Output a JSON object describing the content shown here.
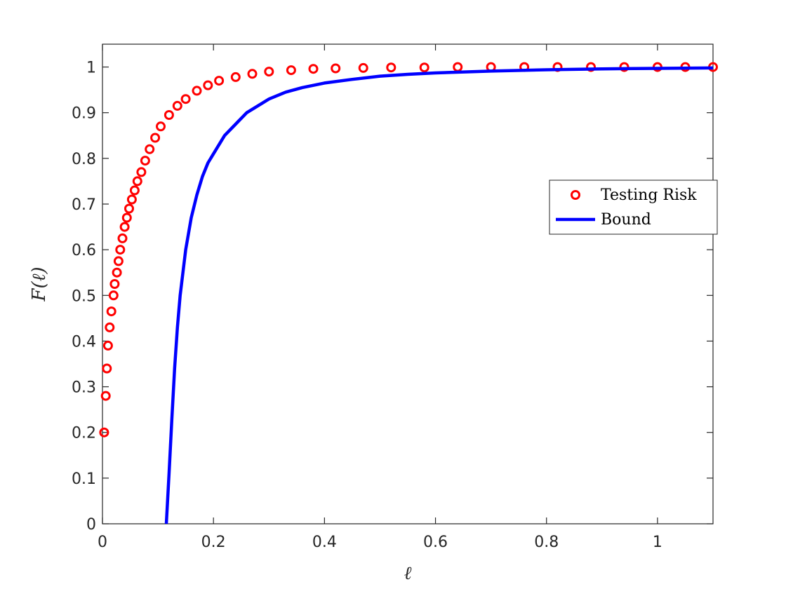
{
  "chart_data": {
    "type": "scatter",
    "title": "",
    "xlabel": "ℓ",
    "ylabel": "F(ℓ)",
    "xlim": [
      0,
      1.1
    ],
    "ylim": [
      0,
      1.05
    ],
    "xticks": [
      0,
      0.2,
      0.4,
      0.6,
      0.8,
      1
    ],
    "xtick_labels": [
      "0",
      "0.2",
      "0.4",
      "0.6",
      "0.8",
      "1"
    ],
    "yticks": [
      0,
      0.1,
      0.2,
      0.3,
      0.4,
      0.5,
      0.6,
      0.7,
      0.8,
      0.9,
      1
    ],
    "ytick_labels": [
      "0",
      "0.1",
      "0.2",
      "0.3",
      "0.4",
      "0.5",
      "0.6",
      "0.7",
      "0.8",
      "0.9",
      "1"
    ],
    "grid": false,
    "legend": {
      "position": "right-middle",
      "entries": [
        "Testing Risk",
        "Bound"
      ]
    },
    "series": [
      {
        "name": "Testing Risk",
        "type": "scatter",
        "marker": "circle-open",
        "color": "#ff0000",
        "x": [
          0.003,
          0.006,
          0.008,
          0.01,
          0.013,
          0.016,
          0.02,
          0.022,
          0.026,
          0.029,
          0.032,
          0.036,
          0.04,
          0.044,
          0.048,
          0.053,
          0.058,
          0.063,
          0.07,
          0.077,
          0.085,
          0.095,
          0.105,
          0.12,
          0.135,
          0.15,
          0.17,
          0.19,
          0.21,
          0.24,
          0.27,
          0.3,
          0.34,
          0.38,
          0.42,
          0.47,
          0.52,
          0.58,
          0.64,
          0.7,
          0.76,
          0.82,
          0.88,
          0.94,
          1.0,
          1.05,
          1.1
        ],
        "y": [
          0.2,
          0.28,
          0.34,
          0.39,
          0.43,
          0.465,
          0.5,
          0.525,
          0.55,
          0.575,
          0.6,
          0.625,
          0.65,
          0.67,
          0.69,
          0.71,
          0.73,
          0.75,
          0.77,
          0.795,
          0.82,
          0.845,
          0.87,
          0.895,
          0.915,
          0.93,
          0.948,
          0.96,
          0.97,
          0.978,
          0.985,
          0.99,
          0.993,
          0.996,
          0.997,
          0.998,
          0.999,
          0.999,
          1.0,
          1.0,
          1.0,
          1.0,
          1.0,
          1.0,
          1.0,
          1.0,
          1.0
        ]
      },
      {
        "name": "Bound",
        "type": "line",
        "color": "#0000ff",
        "x": [
          0.115,
          0.12,
          0.125,
          0.13,
          0.135,
          0.14,
          0.15,
          0.16,
          0.17,
          0.18,
          0.19,
          0.2,
          0.22,
          0.24,
          0.26,
          0.28,
          0.3,
          0.33,
          0.36,
          0.4,
          0.45,
          0.5,
          0.55,
          0.6,
          0.7,
          0.8,
          0.9,
          1.0,
          1.1
        ],
        "y": [
          0.0,
          0.11,
          0.23,
          0.34,
          0.43,
          0.5,
          0.6,
          0.67,
          0.72,
          0.76,
          0.79,
          0.81,
          0.85,
          0.875,
          0.9,
          0.915,
          0.93,
          0.945,
          0.955,
          0.965,
          0.973,
          0.98,
          0.984,
          0.987,
          0.991,
          0.994,
          0.996,
          0.997,
          0.998
        ]
      }
    ]
  }
}
